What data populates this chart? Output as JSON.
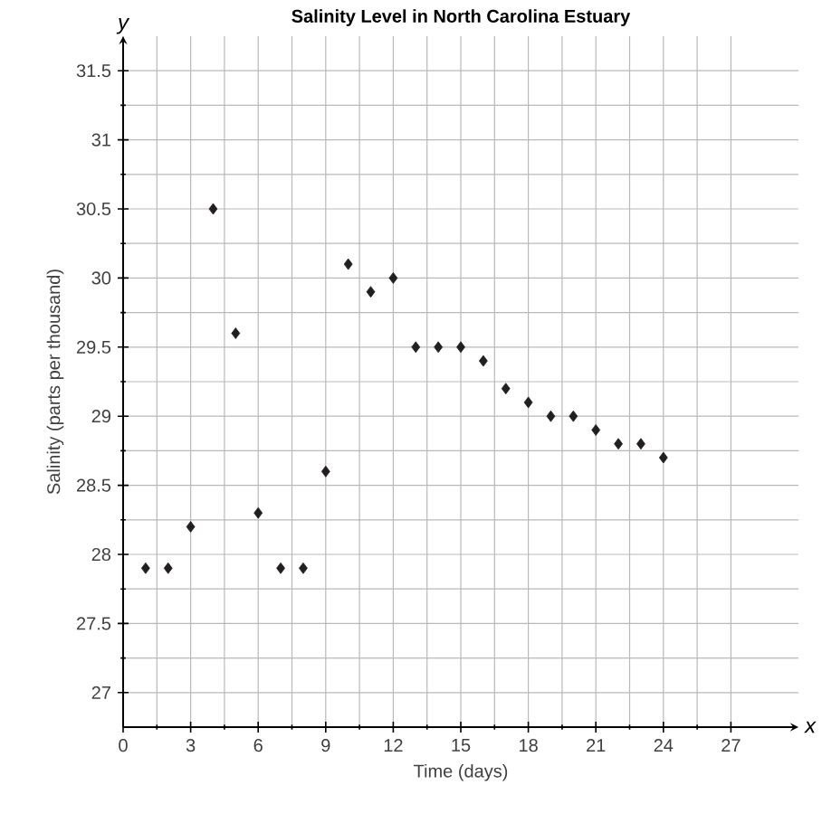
{
  "chart_data": {
    "type": "scatter",
    "title": "Salinity Level in North Carolina Estuary",
    "xlabel": "Time (days)",
    "ylabel": "Salinity (parts per thousand)",
    "annotations": [
      "x",
      "y"
    ],
    "x": [
      1,
      2,
      3,
      4,
      5,
      6,
      7,
      8,
      9,
      10,
      11,
      12,
      13,
      14,
      15,
      16,
      17,
      18,
      19,
      20,
      21,
      22,
      23,
      24
    ],
    "series": [
      {
        "color": "#231f20",
        "values": [
          27.9,
          27.9,
          28.2,
          30.5,
          29.6,
          28.3,
          27.9,
          27.9,
          28.6,
          30.1,
          29.9,
          30.0,
          29.5,
          29.5,
          29.5,
          29.4,
          29.2,
          29.1,
          29.0,
          29.0,
          28.9,
          28.8,
          28.8,
          28.7
        ]
      }
    ],
    "xlim": [
      0,
      30
    ],
    "ylim": [
      26.75,
      31.75
    ],
    "xticks": [
      0,
      3,
      6,
      9,
      12,
      15,
      18,
      21,
      24,
      27
    ],
    "yticks": [
      27,
      27.5,
      28,
      28.5,
      29,
      29.5,
      30,
      30.5,
      31,
      31.5
    ],
    "grid": true,
    "marker": "diamond"
  }
}
